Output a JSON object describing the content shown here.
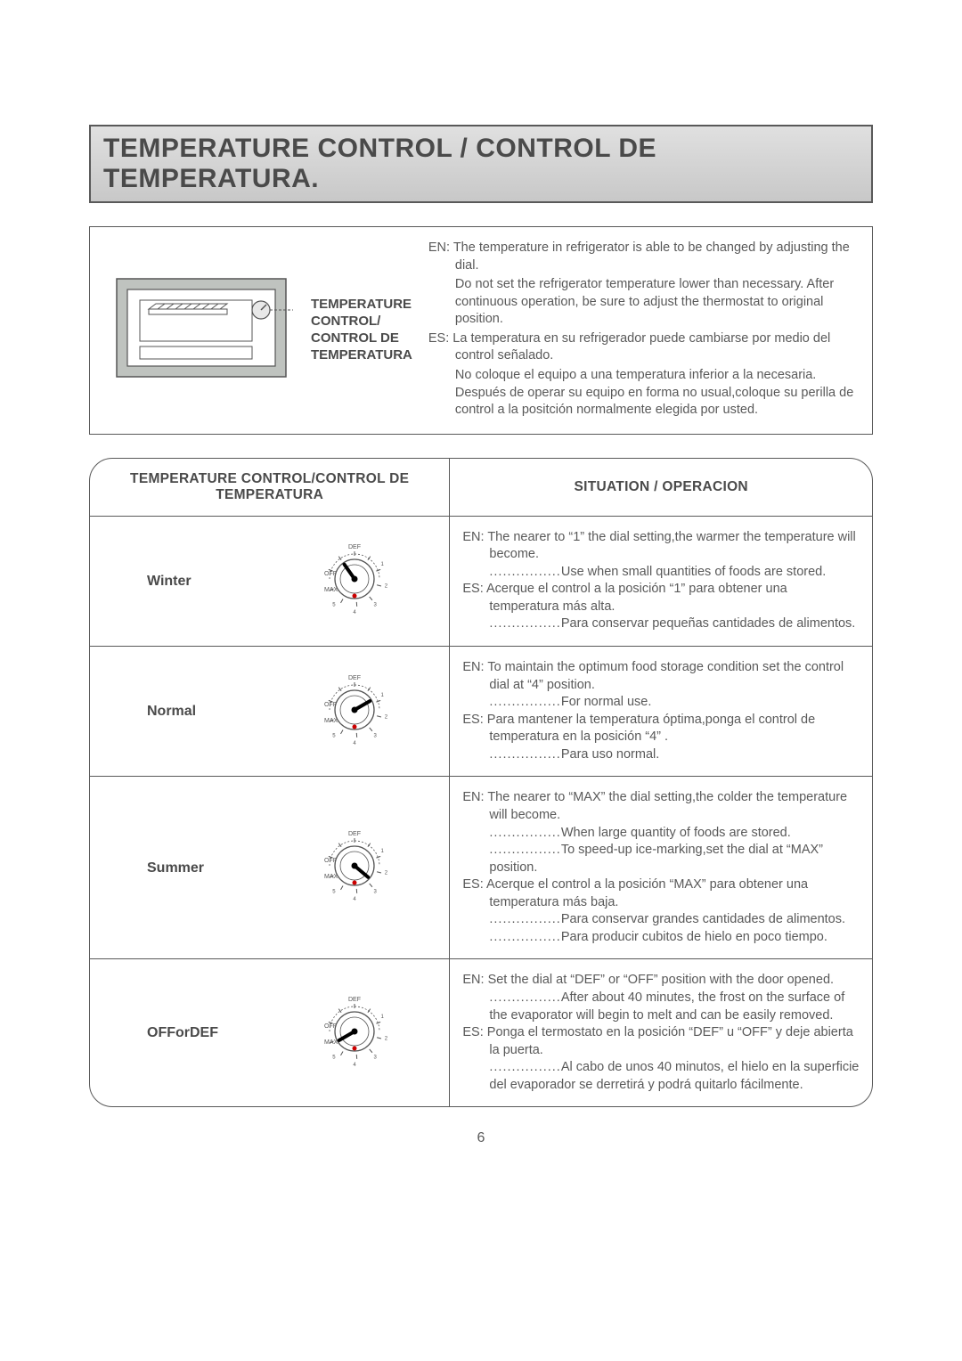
{
  "heading": "TEMPERATURE CONTROL / CONTROL DE TEMPERATURA.",
  "intro": {
    "label_line1": "TEMPERATURE",
    "label_line2": "CONTROL/",
    "label_line3": "CONTROL DE",
    "label_line4": "TEMPERATURA",
    "en1": "EN: The temperature in refrigerator is able to be changed by adjusting the dial.",
    "en2": "Do not set the refrigerator temperature lower than necessary. After continuous operation, be sure to adjust the thermostat to original position.",
    "es1": "ES: La temperatura en su refrigerador puede cambiarse por medio del control señalado.",
    "es2": "No coloque el equipo a una temperatura inferior a la necesaria. Después de operar su equipo en forma no usual,coloque su perilla de control a la positción normalmente elegida por usted."
  },
  "table": {
    "header_left": "TEMPERATURE CONTROL/CONTROL DE TEMPERATURA",
    "header_right": "SITUATION / OPERACION",
    "rows": [
      {
        "season": "Winter",
        "pointer_angle": -35,
        "desc": {
          "en_main": "EN: The nearer to “1” the dial setting,the warmer the temperature will become.",
          "en_dots": "Use  when small quantities of foods are stored.",
          "es_main": "ES: Acerque el control a la posición “1”   para obtener una temperatura más alta.",
          "es_dots": "Para conservar pequeñas cantidades de alimentos."
        }
      },
      {
        "season": "Normal",
        "pointer_angle": 60,
        "desc": {
          "en_main": "EN: To maintain the optimum  food storage condition set the control dial at “4” position.",
          "en_dots": "For normal use.",
          "es_main": "ES: Para mantener la temperatura óptima,ponga el control de temperatura en la posición  “4” .",
          "es_dots": "Para uso normal."
        }
      },
      {
        "season": "Summer",
        "pointer_angle": 130,
        "desc": {
          "en_main": "EN: The nearer to “MAX” the dial setting,the colder the temperature will become.",
          "en_dots": "When large quantity of foods are stored.",
          "en_dots2": "To speed-up ice-marking,set the dial at “MAX” position.",
          "es_main": "ES: Acerque el control a la posición “MAX” para obtener una temperatura más baja.",
          "es_dots": "Para conservar grandes cantidades de alimentos.",
          "es_dots2": "Para producir cubitos de hielo en poco tiempo."
        }
      },
      {
        "season": "OFForDEF",
        "pointer_angle": -120,
        "desc": {
          "en_main": "EN: Set the dial at “DEF” or “OFF” position with the door opened.",
          "en_dots": "After about 40 minutes, the frost on the surface of the evaporator will begin to melt and can be easily removed.",
          "es_main": "ES: Ponga el termostato en la posición “DEF” u “OFF”  y deje abierta la puerta.",
          "es_dots": "Al cabo de unos 40 minutos, el hielo en la superficie del evaporador se derretirá y podrá quitarlo fácilmente."
        }
      }
    ]
  },
  "dial_labels": {
    "def": "DEF",
    "off": "OFF",
    "max": "MAX"
  },
  "page_number": "6"
}
